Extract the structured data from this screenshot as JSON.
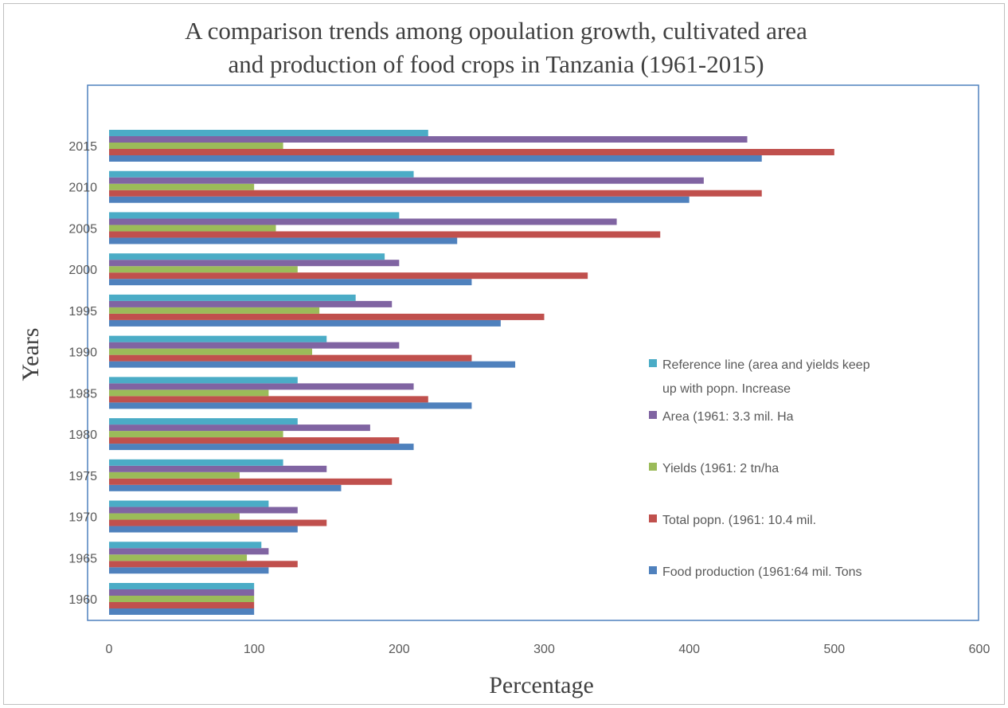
{
  "chart_data": {
    "type": "bar",
    "orientation": "horizontal",
    "title_line1": "A comparison trends among opoulation growth, cultivated area",
    "title_line2": "and production of food crops  in Tanzania (1961-2015)",
    "xlabel": "Percentage",
    "ylabel": "Years",
    "xlim": [
      0,
      600
    ],
    "x_ticks": [
      "0",
      "100",
      "200",
      "300",
      "400",
      "500",
      "600"
    ],
    "categories": [
      "1960",
      "1965",
      "1970",
      "1975",
      "1980",
      "1985",
      "1990",
      "1995",
      "2000",
      "2005",
      "2010",
      "2015"
    ],
    "grid": false,
    "legend_position": "right",
    "series": [
      {
        "name": "Food production (1961:64 mil. Tons",
        "color": "#4f81bd",
        "values": [
          100,
          110,
          130,
          160,
          210,
          250,
          280,
          270,
          250,
          240,
          400,
          450
        ]
      },
      {
        "name": "Total popn. (1961: 10.4 mil.",
        "color": "#c0504d",
        "values": [
          100,
          130,
          150,
          195,
          200,
          220,
          250,
          300,
          330,
          380,
          450,
          500
        ]
      },
      {
        "name": "Yields (1961: 2 tn/ha",
        "color": "#9bbb59",
        "values": [
          100,
          95,
          90,
          90,
          120,
          110,
          140,
          145,
          130,
          115,
          100,
          120
        ]
      },
      {
        "name": "Area (1961: 3.3 mil. Ha",
        "color": "#8064a2",
        "values": [
          100,
          110,
          130,
          150,
          180,
          210,
          200,
          195,
          200,
          350,
          410,
          440
        ]
      },
      {
        "name": "Reference line (area and yields keep up with popn. Increase",
        "color": "#4bacc6",
        "values": [
          100,
          105,
          110,
          120,
          130,
          130,
          150,
          170,
          190,
          200,
          210,
          220
        ]
      }
    ],
    "legend_order": [
      4,
      3,
      2,
      1,
      0
    ],
    "legend_lines": [
      [
        "Reference line (area and yields keep",
        "up with popn. Increase"
      ],
      [
        "Area (1961: 3.3 mil. Ha"
      ],
      [
        "Yields (1961: 2 tn/ha"
      ],
      [
        "Total popn. (1961: 10.4 mil."
      ],
      [
        "Food production (1961:64 mil. Tons"
      ]
    ]
  }
}
